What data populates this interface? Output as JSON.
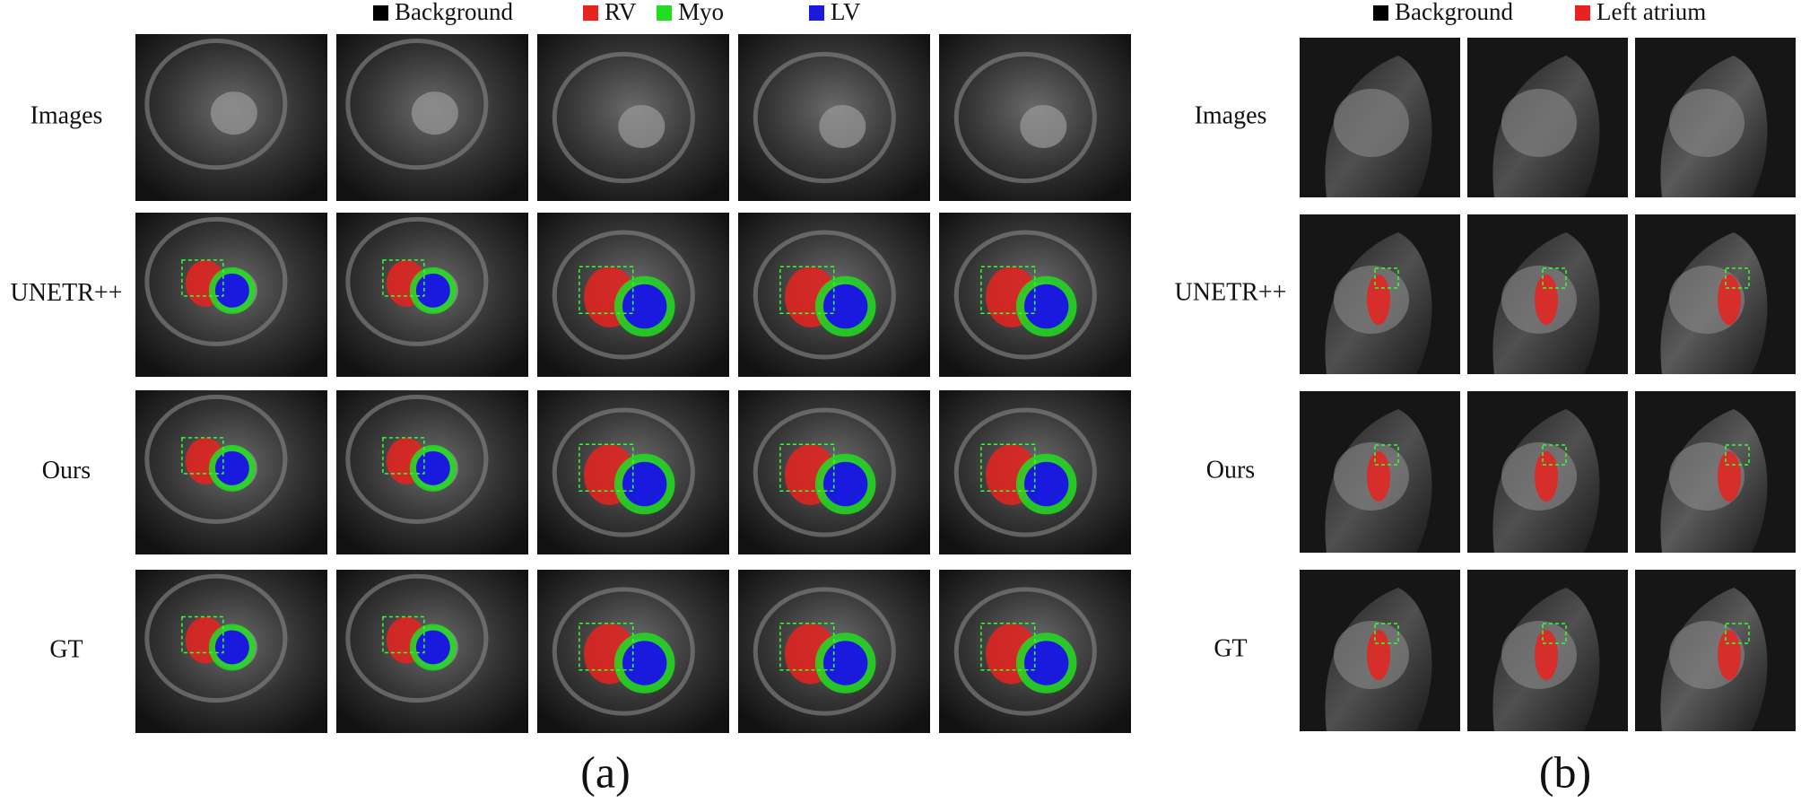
{
  "figure": {
    "panel_a": {
      "legend": [
        {
          "label": "Background",
          "color": "#000000"
        },
        {
          "label": "RV",
          "color": "#e8221e"
        },
        {
          "label": "Myo",
          "color": "#22dd22"
        },
        {
          "label": "LV",
          "color": "#1a1adf"
        }
      ],
      "rows": [
        "Images",
        "UNETR++",
        "Ours",
        "GT"
      ],
      "caption": "(a)"
    },
    "panel_b": {
      "legend": [
        {
          "label": "Background",
          "color": "#000000"
        },
        {
          "label": "Left atrium",
          "color": "#e8221e"
        }
      ],
      "rows": [
        "Images",
        "UNETR++",
        "Ours",
        "GT"
      ],
      "caption": "(b)"
    }
  }
}
